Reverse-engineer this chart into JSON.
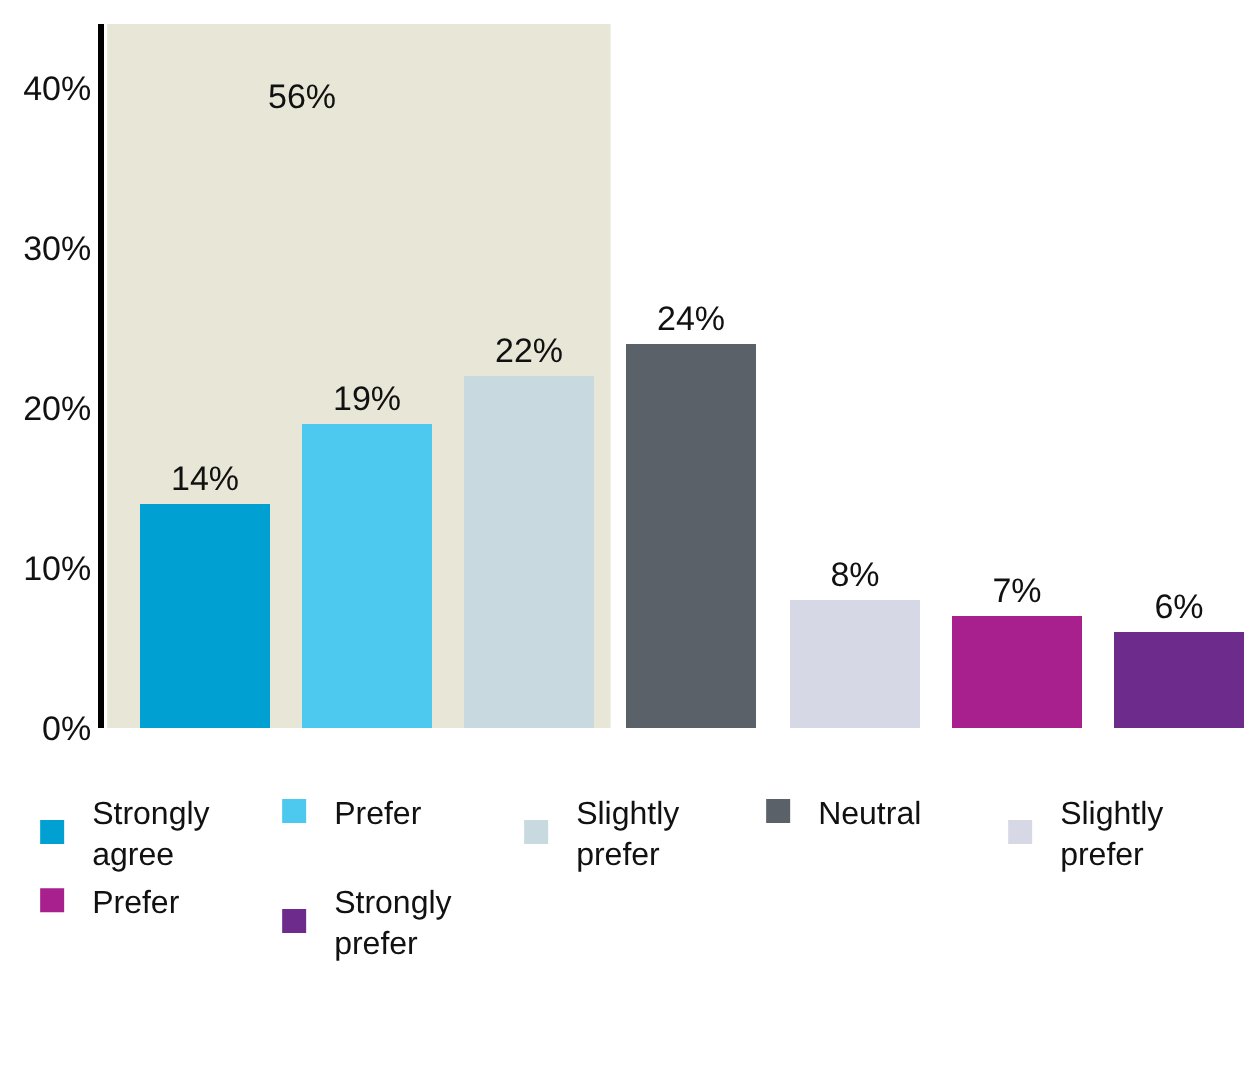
{
  "chart_data": {
    "type": "bar",
    "categories": [
      null,
      null,
      null,
      null,
      null,
      null,
      null
    ],
    "stacked": true,
    "series": [
      {
        "name": "Strongly agree",
        "color": "#00a0d2",
        "values": [
          14,
          null,
          null,
          null,
          null,
          null,
          null
        ],
        "value_labels": [
          "14%",
          null,
          null,
          null,
          null,
          null,
          null
        ]
      },
      {
        "name": "Prefer",
        "color": "#4dc9f0",
        "values": [
          null,
          19,
          null,
          null,
          null,
          null,
          null
        ],
        "value_labels": [
          null,
          "19%",
          null,
          null,
          null,
          null,
          null
        ]
      },
      {
        "name": "Slightly prefer",
        "color": "#c8d9e0",
        "values": [
          null,
          null,
          22,
          null,
          null,
          null,
          null
        ],
        "value_labels": [
          null,
          null,
          "22%",
          null,
          null,
          null,
          null
        ]
      },
      {
        "name": "Neutral",
        "color": "#5a6169",
        "values": [
          null,
          null,
          null,
          24,
          null,
          null,
          null
        ],
        "value_labels": [
          null,
          null,
          null,
          "24%",
          null,
          null,
          null
        ]
      },
      {
        "name": "Slightly prefer",
        "color": "#d6d8e5",
        "values": [
          null,
          null,
          null,
          null,
          8,
          null,
          null
        ],
        "value_labels": [
          null,
          null,
          null,
          null,
          "8%",
          null,
          null
        ]
      },
      {
        "name": "Prefer",
        "color": "#a81f8e",
        "values": [
          null,
          null,
          null,
          null,
          null,
          7,
          null
        ],
        "value_labels": [
          null,
          null,
          null,
          null,
          null,
          "7%",
          null
        ]
      },
      {
        "name": "Strongly prefer",
        "color": "#6d2c8c",
        "values": [
          null,
          null,
          null,
          null,
          null,
          null,
          6
        ],
        "value_labels": [
          null,
          null,
          null,
          null,
          null,
          null,
          "6%"
        ]
      }
    ],
    "ylim": [
      0,
      44
    ],
    "yticks": [
      {
        "value": 0,
        "label": "0%"
      },
      {
        "value": 10,
        "label": "10%"
      },
      {
        "value": 20,
        "label": "20%"
      },
      {
        "value": 30,
        "label": "30%"
      },
      {
        "value": 40,
        "label": "40%"
      }
    ],
    "annotations": [
      "56%"
    ],
    "grid": false,
    "legend": "bottom"
  }
}
